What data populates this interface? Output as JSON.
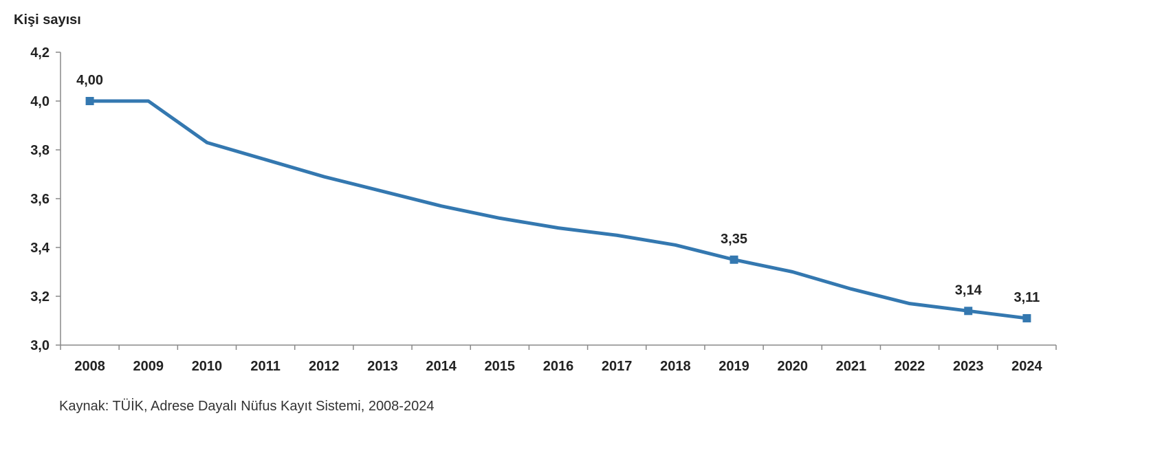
{
  "chart_data": {
    "type": "line",
    "title": "",
    "ylabel": "Kişi sayısı",
    "xlabel": "",
    "categories": [
      "2008",
      "2009",
      "2010",
      "2011",
      "2012",
      "2013",
      "2014",
      "2015",
      "2016",
      "2017",
      "2018",
      "2019",
      "2020",
      "2021",
      "2022",
      "2023",
      "2024"
    ],
    "series": [
      {
        "values": [
          4.0,
          4.0,
          3.83,
          3.76,
          3.69,
          3.63,
          3.57,
          3.52,
          3.48,
          3.45,
          3.41,
          3.35,
          3.3,
          3.23,
          3.17,
          3.14,
          3.11
        ]
      }
    ],
    "data_labels": [
      {
        "category": "2008",
        "text": "4,00"
      },
      {
        "category": "2019",
        "text": "3,35"
      },
      {
        "category": "2023",
        "text": "3,14"
      },
      {
        "category": "2024",
        "text": "3,11"
      }
    ],
    "ylim": [
      3.0,
      4.2
    ],
    "yticks": [
      3.0,
      3.2,
      3.4,
      3.6,
      3.8,
      4.0,
      4.2
    ],
    "ytick_labels": [
      "3,0",
      "3,2",
      "3,4",
      "3,6",
      "3,8",
      "4,0",
      "4,2"
    ],
    "grid": false,
    "color": "#3478b0"
  },
  "source": "Kaynak: TÜİK, Adrese Dayalı Nüfus Kayıt Sistemi, 2008-2024"
}
